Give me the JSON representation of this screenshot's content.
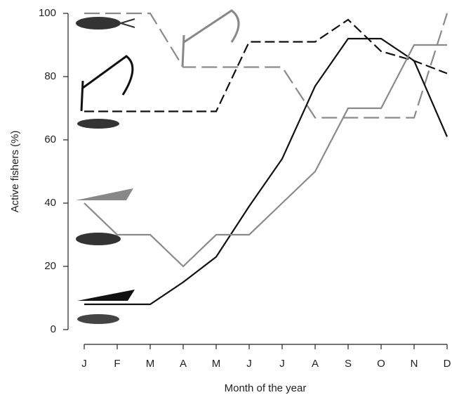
{
  "chart_data": {
    "type": "line",
    "x_label": "Month of the year",
    "y_label": "Active fishers (%)",
    "categories": [
      "J",
      "F",
      "M",
      "A",
      "M",
      "J",
      "J",
      "A",
      "S",
      "O",
      "N",
      "D"
    ],
    "ylim": [
      0,
      100
    ],
    "yticks": [
      0,
      20,
      40,
      60,
      80,
      100
    ],
    "series": [
      {
        "color": "#111111",
        "linestyle": "dashed",
        "values": [
          69,
          69,
          69,
          69,
          69,
          91,
          91,
          91,
          98,
          88,
          85,
          81
        ]
      },
      {
        "color": "#8a8a8a",
        "linestyle": "dashed",
        "values": [
          100,
          100,
          100,
          83,
          83,
          83,
          83,
          67,
          67,
          67,
          67,
          100
        ]
      },
      {
        "color": "#111111",
        "linestyle": "solid",
        "values": [
          8,
          8,
          8,
          15,
          23,
          39,
          54,
          77,
          92,
          92,
          85,
          61
        ]
      },
      {
        "color": "#8a8a8a",
        "linestyle": "solid",
        "values": [
          40,
          30,
          30,
          20,
          30,
          30,
          40,
          50,
          70,
          70,
          90,
          90
        ]
      }
    ]
  }
}
